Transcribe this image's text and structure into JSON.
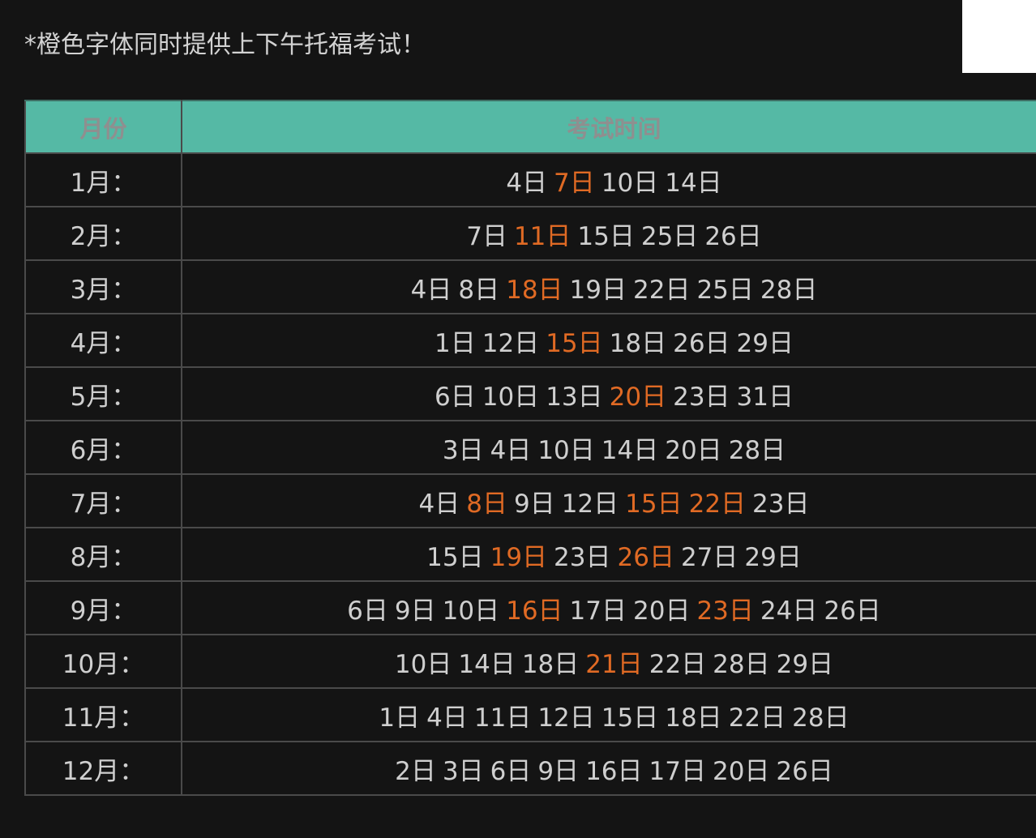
{
  "note": "*橙色字体同时提供上下午托福考试！",
  "table": {
    "headers": {
      "month": "月份",
      "dates": "考试时间"
    },
    "rows": [
      {
        "month": "1月：",
        "dates": [
          {
            "t": "4日",
            "o": false
          },
          {
            "t": "7日",
            "o": true
          },
          {
            "t": "10日",
            "o": false
          },
          {
            "t": "14日",
            "o": false
          }
        ]
      },
      {
        "month": "2月：",
        "dates": [
          {
            "t": "7日",
            "o": false
          },
          {
            "t": "11日",
            "o": true
          },
          {
            "t": "15日",
            "o": false
          },
          {
            "t": "25日",
            "o": false
          },
          {
            "t": "26日",
            "o": false
          }
        ]
      },
      {
        "month": "3月：",
        "dates": [
          {
            "t": "4日",
            "o": false
          },
          {
            "t": "8日",
            "o": false
          },
          {
            "t": "18日",
            "o": true
          },
          {
            "t": "19日",
            "o": false
          },
          {
            "t": "22日",
            "o": false
          },
          {
            "t": "25日",
            "o": false
          },
          {
            "t": "28日",
            "o": false
          }
        ]
      },
      {
        "month": "4月：",
        "dates": [
          {
            "t": "1日",
            "o": false
          },
          {
            "t": "12日",
            "o": false
          },
          {
            "t": "15日",
            "o": true
          },
          {
            "t": "18日",
            "o": false
          },
          {
            "t": "26日",
            "o": false
          },
          {
            "t": "29日",
            "o": false
          }
        ]
      },
      {
        "month": "5月：",
        "dates": [
          {
            "t": "6日",
            "o": false
          },
          {
            "t": "10日",
            "o": false
          },
          {
            "t": "13日",
            "o": false
          },
          {
            "t": "20日",
            "o": true
          },
          {
            "t": "23日",
            "o": false
          },
          {
            "t": "31日",
            "o": false
          }
        ]
      },
      {
        "month": "6月：",
        "dates": [
          {
            "t": "3日",
            "o": false
          },
          {
            "t": "4日",
            "o": false
          },
          {
            "t": "10日",
            "o": false
          },
          {
            "t": "14日",
            "o": false
          },
          {
            "t": "20日",
            "o": false
          },
          {
            "t": "28日",
            "o": false
          }
        ]
      },
      {
        "month": "7月：",
        "dates": [
          {
            "t": "4日",
            "o": false
          },
          {
            "t": "8日",
            "o": true
          },
          {
            "t": "9日",
            "o": false
          },
          {
            "t": "12日",
            "o": false
          },
          {
            "t": "15日",
            "o": true
          },
          {
            "t": "22日",
            "o": true
          },
          {
            "t": "23日",
            "o": false
          }
        ]
      },
      {
        "month": "8月：",
        "dates": [
          {
            "t": "15日",
            "o": false
          },
          {
            "t": "19日",
            "o": true
          },
          {
            "t": "23日",
            "o": false
          },
          {
            "t": "26日",
            "o": true
          },
          {
            "t": "27日",
            "o": false
          },
          {
            "t": "29日",
            "o": false
          }
        ]
      },
      {
        "month": "9月：",
        "dates": [
          {
            "t": "6日",
            "o": false
          },
          {
            "t": "9日",
            "o": false
          },
          {
            "t": "10日",
            "o": false
          },
          {
            "t": "16日",
            "o": true
          },
          {
            "t": "17日",
            "o": false
          },
          {
            "t": "20日",
            "o": false
          },
          {
            "t": "23日",
            "o": true
          },
          {
            "t": "24日",
            "o": false
          },
          {
            "t": "26日",
            "o": false
          }
        ]
      },
      {
        "month": "10月：",
        "dates": [
          {
            "t": "10日",
            "o": false
          },
          {
            "t": "14日",
            "o": false
          },
          {
            "t": "18日",
            "o": false
          },
          {
            "t": "21日",
            "o": true
          },
          {
            "t": "22日",
            "o": false
          },
          {
            "t": "28日",
            "o": false
          },
          {
            "t": "29日",
            "o": false
          }
        ]
      },
      {
        "month": "11月：",
        "dates": [
          {
            "t": "1日",
            "o": false
          },
          {
            "t": "4日",
            "o": false
          },
          {
            "t": "11日",
            "o": false
          },
          {
            "t": "12日",
            "o": false
          },
          {
            "t": "15日",
            "o": false
          },
          {
            "t": "18日",
            "o": false
          },
          {
            "t": "22日",
            "o": false
          },
          {
            "t": "28日",
            "o": false
          }
        ]
      },
      {
        "month": "12月：",
        "dates": [
          {
            "t": "2日",
            "o": false
          },
          {
            "t": "3日",
            "o": false
          },
          {
            "t": "6日",
            "o": false
          },
          {
            "t": "9日",
            "o": false
          },
          {
            "t": "16日",
            "o": false
          },
          {
            "t": "17日",
            "o": false
          },
          {
            "t": "20日",
            "o": false
          },
          {
            "t": "26日",
            "o": false
          }
        ]
      }
    ]
  },
  "colors": {
    "header_bg": "#55b9a5",
    "highlight": "#e06a24",
    "page_bg": "#141414",
    "text": "#cfcfcf"
  }
}
